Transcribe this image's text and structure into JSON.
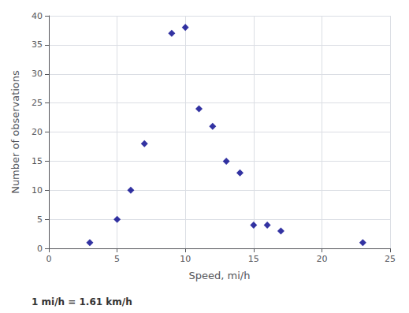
{
  "chart_data": {
    "type": "scatter",
    "x": [
      3,
      5,
      6,
      7,
      9,
      10,
      11,
      12,
      13,
      14,
      15,
      16,
      17,
      23
    ],
    "values": [
      1,
      5,
      10,
      18,
      37,
      38,
      24,
      21,
      15,
      13,
      4,
      4,
      3,
      1
    ],
    "color": "#00008B",
    "marker": "diamond",
    "xlabel": "Speed, mi/h",
    "ylabel": "Number of observations",
    "xlim": [
      0,
      25
    ],
    "ylim": [
      0,
      40
    ],
    "xticks": [
      0,
      5,
      10,
      15,
      20,
      25
    ],
    "yticks": [
      0,
      5,
      10,
      15,
      20,
      25,
      30,
      35,
      40
    ],
    "grid": true,
    "annotations": [
      "1 mi/h = 1.61 km/h"
    ]
  }
}
